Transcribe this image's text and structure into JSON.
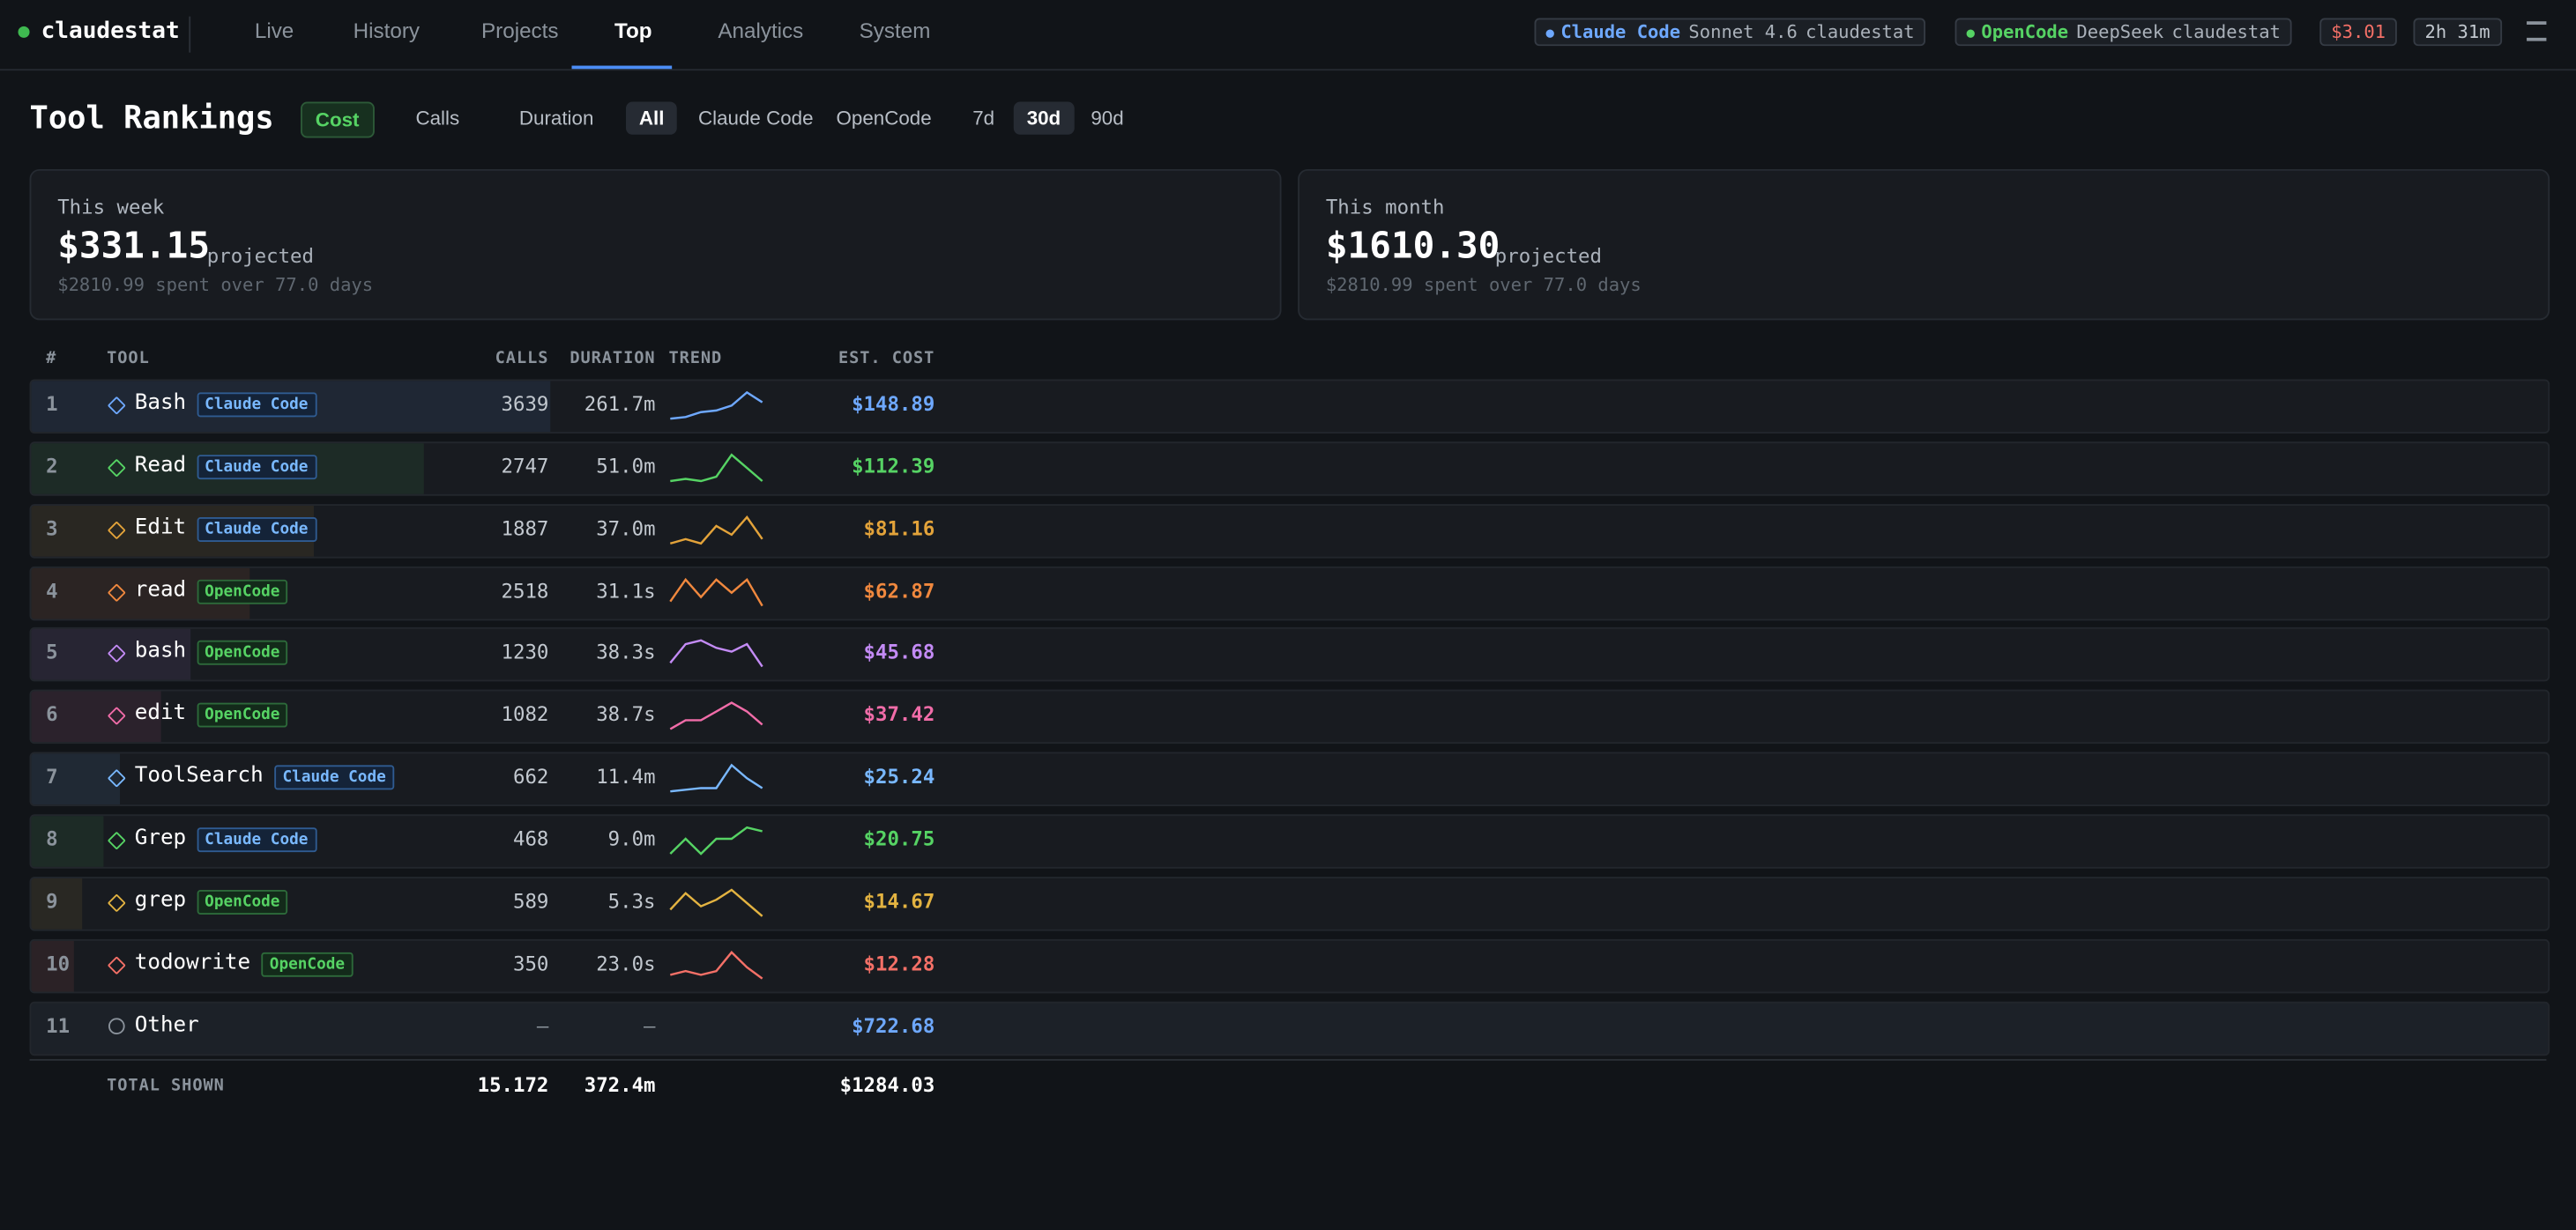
{
  "nav": {
    "brand": "claudestat",
    "tabs": [
      "Live",
      "History",
      "Projects",
      "Top",
      "Analytics",
      "System"
    ],
    "active_tab": 3
  },
  "status": {
    "sessions": [
      {
        "tool": "Claude Code",
        "model": "Sonnet 4.6",
        "project": "claudestat",
        "color": "#6ea8fe"
      },
      {
        "tool": "OpenCode",
        "model": "DeepSeek",
        "project": "claudestat",
        "color": "#56d364"
      }
    ],
    "cost": "$3.01",
    "elapsed": "2h 31m"
  },
  "header": {
    "title": "Tool Rankings",
    "metrics": [
      "Cost",
      "Calls",
      "Duration"
    ],
    "active_metric": 0,
    "sources": [
      "All",
      "Claude Code",
      "OpenCode"
    ],
    "active_source": 0,
    "ranges": [
      "7d",
      "30d",
      "90d"
    ],
    "active_range": 1
  },
  "cards": [
    {
      "label": "This week",
      "value": "$331.15",
      "suffix": "projected",
      "note": "$2810.99 spent over 77.0 days"
    },
    {
      "label": "This month",
      "value": "$1610.30",
      "suffix": "projected",
      "note": "$2810.99 spent over 77.0 days"
    }
  ],
  "table": {
    "columns": [
      "#",
      "TOOL",
      "CALLS",
      "DURATION",
      "TREND",
      "EST. COST"
    ],
    "rows": [
      {
        "rank": 1,
        "tool": "Bash",
        "source": "Claude Code",
        "calls": 3639,
        "duration": "261.7m",
        "cost": 148.89,
        "cost_label": "$148.89",
        "color": "#6ea8fe",
        "trend": [
          1,
          1.5,
          3,
          3.5,
          5,
          9,
          6
        ]
      },
      {
        "rank": 2,
        "tool": "Read",
        "source": "Claude Code",
        "calls": 2747,
        "duration": "51.0m",
        "cost": 112.39,
        "cost_label": "$112.39",
        "color": "#56d364",
        "trend": [
          2,
          2.5,
          2,
          3,
          8,
          5,
          2
        ]
      },
      {
        "rank": 3,
        "tool": "Edit",
        "source": "Claude Code",
        "calls": 1887,
        "duration": "37.0m",
        "cost": 81.16,
        "cost_label": "$81.16",
        "color": "#e3a33a",
        "trend": [
          1,
          2,
          1,
          5,
          3,
          7,
          2
        ]
      },
      {
        "rank": 4,
        "tool": "read",
        "source": "OpenCode",
        "calls": 2518,
        "duration": "31.1s",
        "cost": 62.87,
        "cost_label": "$62.87",
        "color": "#f0883e",
        "trend": [
          2,
          7,
          3,
          7,
          4,
          7,
          1
        ]
      },
      {
        "rank": 5,
        "tool": "bash",
        "source": "OpenCode",
        "calls": 1230,
        "duration": "38.3s",
        "cost": 45.68,
        "cost_label": "$45.68",
        "color": "#c38bf5",
        "trend": [
          3,
          8,
          9,
          7,
          6,
          8,
          2
        ]
      },
      {
        "rank": 6,
        "tool": "edit",
        "source": "OpenCode",
        "calls": 1082,
        "duration": "38.7s",
        "cost": 37.42,
        "cost_label": "$37.42",
        "color": "#f06ca8",
        "trend": [
          2,
          4,
          4,
          6,
          8,
          6,
          3
        ]
      },
      {
        "rank": 7,
        "tool": "ToolSearch",
        "source": "Claude Code",
        "calls": 662,
        "duration": "11.4m",
        "cost": 25.24,
        "cost_label": "$25.24",
        "color": "#79b8ff",
        "trend": [
          1,
          1.5,
          2,
          2,
          9,
          5,
          2
        ]
      },
      {
        "rank": 8,
        "tool": "Grep",
        "source": "Claude Code",
        "calls": 468,
        "duration": "9.0m",
        "cost": 20.75,
        "cost_label": "$20.75",
        "color": "#56d364",
        "trend": [
          2,
          6,
          2,
          6,
          6,
          9,
          8
        ]
      },
      {
        "rank": 9,
        "tool": "grep",
        "source": "OpenCode",
        "calls": 589,
        "duration": "5.3s",
        "cost": 14.67,
        "cost_label": "$14.67",
        "color": "#e3b341",
        "trend": [
          3,
          8,
          4,
          6,
          9,
          5,
          1
        ]
      },
      {
        "rank": 10,
        "tool": "todowrite",
        "source": "OpenCode",
        "calls": 350,
        "duration": "23.0s",
        "cost": 12.28,
        "cost_label": "$12.28",
        "color": "#f47067",
        "trend": [
          2,
          3,
          2,
          3,
          8,
          4,
          1
        ]
      }
    ],
    "other": {
      "rank": 11,
      "tool": "Other",
      "calls": "—",
      "duration": "—",
      "cost_label": "$722.68"
    },
    "total": {
      "label": "TOTAL SHOWN",
      "calls": "15.172",
      "duration": "372.4m",
      "cost": "$1284.03"
    }
  }
}
